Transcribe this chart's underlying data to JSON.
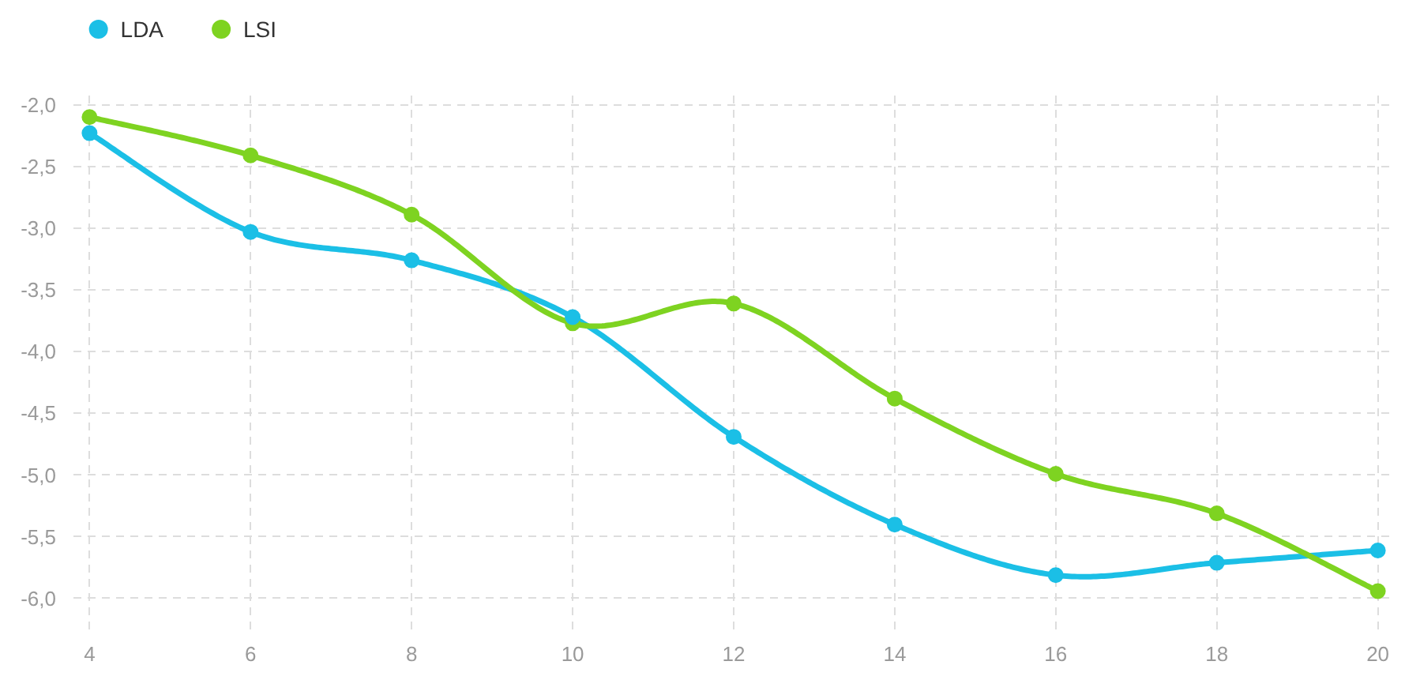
{
  "chart_data": {
    "type": "line",
    "x": [
      4,
      6,
      8,
      10,
      12,
      14,
      16,
      18,
      20
    ],
    "series": [
      {
        "name": "LDA",
        "color": "#1bbfe6",
        "values": [
          -2.23,
          -3.03,
          -3.26,
          -3.72,
          -4.69,
          -5.4,
          -5.81,
          -5.71,
          -5.61
        ]
      },
      {
        "name": "LSI",
        "color": "#7ed321",
        "values": [
          -2.1,
          -2.41,
          -2.89,
          -3.77,
          -3.61,
          -4.38,
          -4.99,
          -5.31,
          -5.94
        ]
      }
    ],
    "xlim": [
      3.8,
      20.2
    ],
    "xticks": [
      4,
      6,
      8,
      10,
      12,
      14,
      16,
      18,
      20
    ],
    "ylim": [
      -6.25,
      -1.9
    ],
    "yticks": [
      {
        "value": -2,
        "label": "-2,0"
      },
      {
        "value": -2.5,
        "label": "-2,5"
      },
      {
        "value": -3,
        "label": "-3,0"
      },
      {
        "value": -3.5,
        "label": "-3,5"
      },
      {
        "value": -4,
        "label": "-4,0"
      },
      {
        "value": -4.5,
        "label": "-4,5"
      },
      {
        "value": -5,
        "label": "-5,0"
      },
      {
        "value": -5.5,
        "label": "-5,5"
      },
      {
        "value": -6,
        "label": "-6,0"
      }
    ],
    "grid": true,
    "legend": "top left",
    "marker": "circle"
  }
}
